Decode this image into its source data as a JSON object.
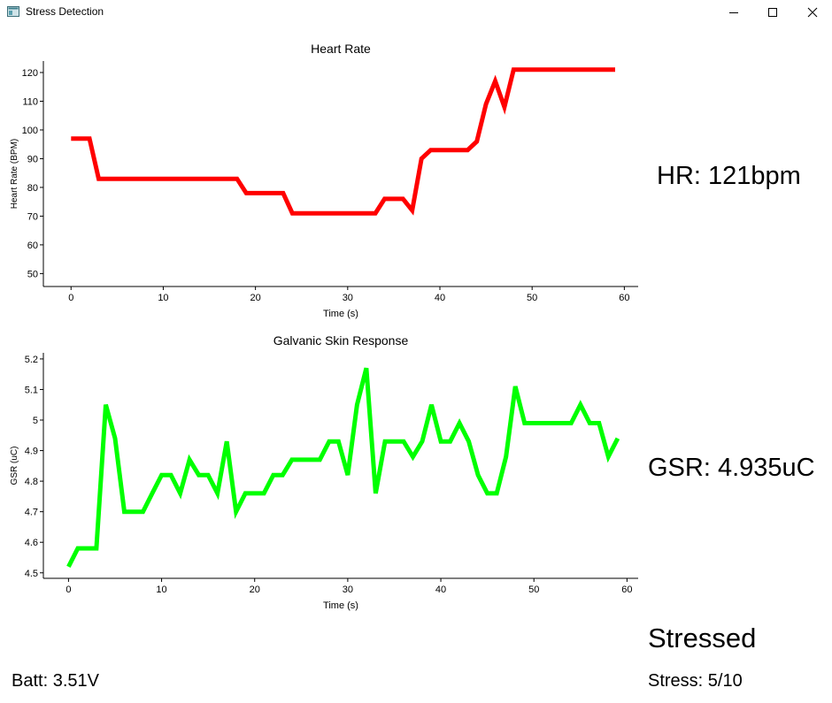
{
  "window": {
    "title": "Stress Detection",
    "icon": "app-window-icon",
    "controls": [
      "minimize-icon",
      "maximize-icon",
      "close-icon"
    ]
  },
  "readouts": {
    "hr": "HR: 121bpm",
    "gsr": "GSR: 4.935uC",
    "status": "Stressed",
    "stress": "Stress: 5/10",
    "battery": "Batt: 3.51V"
  },
  "chart_data": [
    {
      "type": "line",
      "title": "Heart Rate",
      "xlabel": "Time (s)",
      "ylabel": "Heart Rate (BPM)",
      "xlim": [
        -3,
        61.5
      ],
      "ylim": [
        45.5,
        124
      ],
      "xticks": [
        0,
        10,
        20,
        30,
        40,
        50,
        60
      ],
      "yticks": [
        50,
        60,
        70,
        80,
        90,
        100,
        110,
        120
      ],
      "color": "#ff0000",
      "grid": false,
      "series": [
        {
          "x": [
            0,
            1,
            2,
            3,
            4,
            5,
            6,
            7,
            8,
            9,
            10,
            11,
            12,
            13,
            14,
            15,
            16,
            17,
            18,
            19,
            20,
            21,
            22,
            23,
            24,
            25,
            26,
            27,
            28,
            29,
            30,
            31,
            32,
            33,
            34,
            35,
            36,
            37,
            38,
            39,
            40,
            41,
            42,
            43,
            44,
            45,
            46,
            47,
            48,
            49,
            50,
            51,
            52,
            53,
            54,
            55,
            56,
            57,
            58,
            59
          ],
          "values": [
            97,
            97,
            97,
            83,
            83,
            83,
            83,
            83,
            83,
            83,
            83,
            83,
            83,
            83,
            83,
            83,
            83,
            83,
            83,
            78,
            78,
            78,
            78,
            78,
            71,
            71,
            71,
            71,
            71,
            71,
            71,
            71,
            71,
            71,
            76,
            76,
            76,
            72,
            90,
            93,
            93,
            93,
            93,
            93,
            96,
            109,
            117,
            108,
            121,
            121,
            121,
            121,
            121,
            121,
            121,
            121,
            121,
            121,
            121,
            121
          ]
        }
      ]
    },
    {
      "type": "line",
      "title": "Galvanic Skin Response",
      "xlabel": "Time (s)",
      "ylabel": "GSR (uC)",
      "xlim": [
        -2.7,
        61.2
      ],
      "ylim": [
        4.482,
        5.22
      ],
      "xticks": [
        0,
        10,
        20,
        30,
        40,
        50,
        60
      ],
      "yticks": [
        4.5,
        4.6,
        4.7,
        4.8,
        4.9,
        5,
        5.1,
        5.2
      ],
      "color": "#00ff00",
      "grid": false,
      "series": [
        {
          "x": [
            0,
            1,
            2,
            3,
            4,
            5,
            6,
            7,
            8,
            9,
            10,
            11,
            12,
            13,
            14,
            15,
            16,
            17,
            18,
            19,
            20,
            21,
            22,
            23,
            24,
            25,
            26,
            27,
            28,
            29,
            30,
            31,
            32,
            33,
            34,
            35,
            36,
            37,
            38,
            39,
            40,
            41,
            42,
            43,
            44,
            45,
            46,
            47,
            48,
            49,
            50,
            51,
            52,
            53,
            54,
            55,
            56,
            57,
            58,
            59
          ],
          "values": [
            4.52,
            4.58,
            4.58,
            4.58,
            5.05,
            4.94,
            4.7,
            4.7,
            4.7,
            4.76,
            4.82,
            4.82,
            4.76,
            4.87,
            4.82,
            4.82,
            4.76,
            4.93,
            4.7,
            4.76,
            4.76,
            4.76,
            4.82,
            4.82,
            4.87,
            4.87,
            4.87,
            4.87,
            4.93,
            4.93,
            4.82,
            5.05,
            5.17,
            4.76,
            4.93,
            4.93,
            4.93,
            4.88,
            4.93,
            5.05,
            4.93,
            4.93,
            4.99,
            4.93,
            4.82,
            4.76,
            4.76,
            4.88,
            5.11,
            4.99,
            4.99,
            4.99,
            4.99,
            4.99,
            4.99,
            5.05,
            4.99,
            4.99,
            4.88,
            4.94
          ]
        }
      ]
    }
  ]
}
